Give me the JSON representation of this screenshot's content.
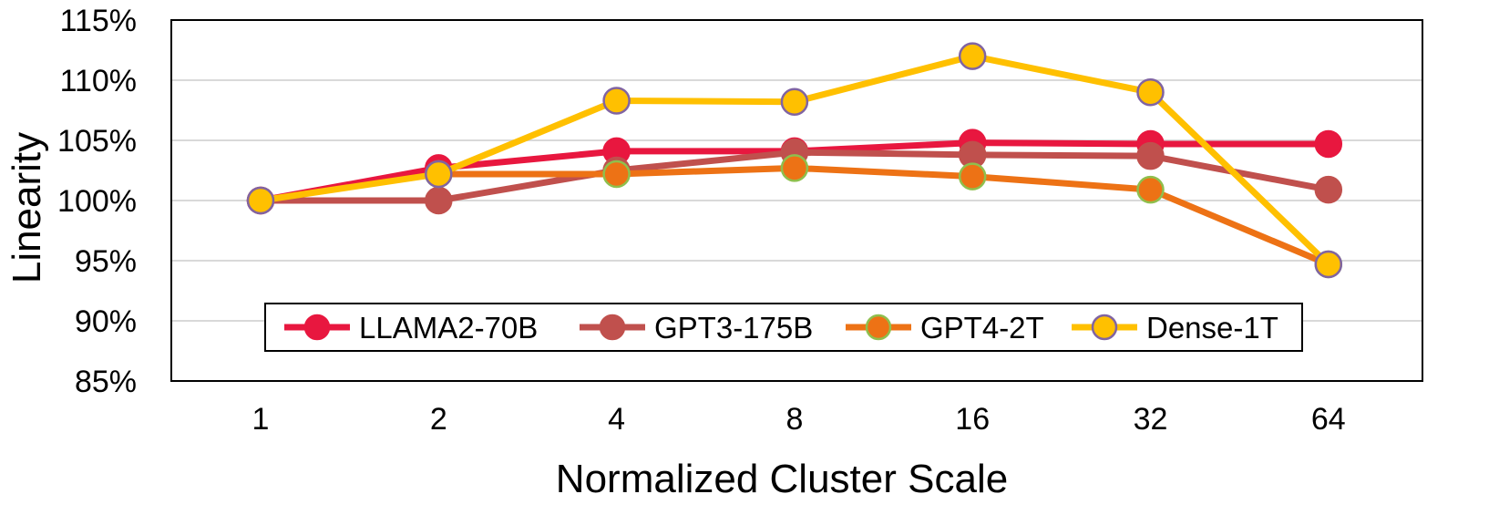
{
  "chart_data": {
    "type": "line",
    "title": "",
    "xlabel": "Normalized Cluster Scale",
    "ylabel": "Linearity",
    "categories": [
      "1",
      "2",
      "4",
      "8",
      "16",
      "32",
      "64"
    ],
    "ylim": [
      85,
      115
    ],
    "yticks": [
      85,
      90,
      95,
      100,
      105,
      110,
      115
    ],
    "ytick_labels": [
      "85%",
      "90%",
      "95%",
      "100%",
      "105%",
      "110%",
      "115%"
    ],
    "grid": true,
    "legend_position": "bottom-center inside",
    "series": [
      {
        "name": "LLAMA2-70B",
        "values": [
          100.0,
          102.7,
          104.1,
          104.1,
          104.8,
          104.7,
          104.7
        ],
        "color": "#e8173f",
        "marker_fill": "#e8173f",
        "marker_edge": "#e8173f"
      },
      {
        "name": "GPT3-175B",
        "values": [
          100.0,
          100.0,
          102.5,
          104.0,
          103.8,
          103.7,
          100.9
        ],
        "color": "#c0504d",
        "marker_fill": "#c0504d",
        "marker_edge": "#c0504d"
      },
      {
        "name": "GPT4-2T",
        "values": [
          null,
          102.2,
          102.2,
          102.7,
          102.0,
          100.9,
          94.7
        ],
        "color": "#ed7215",
        "marker_fill": "#ed7215",
        "marker_edge": "#8fbf4d"
      },
      {
        "name": "Dense-1T",
        "values": [
          100.0,
          102.2,
          108.3,
          108.2,
          112.0,
          109.0,
          94.7
        ],
        "color": "#ffc000",
        "marker_fill": "#ffc000",
        "marker_edge": "#8064a2"
      }
    ]
  }
}
